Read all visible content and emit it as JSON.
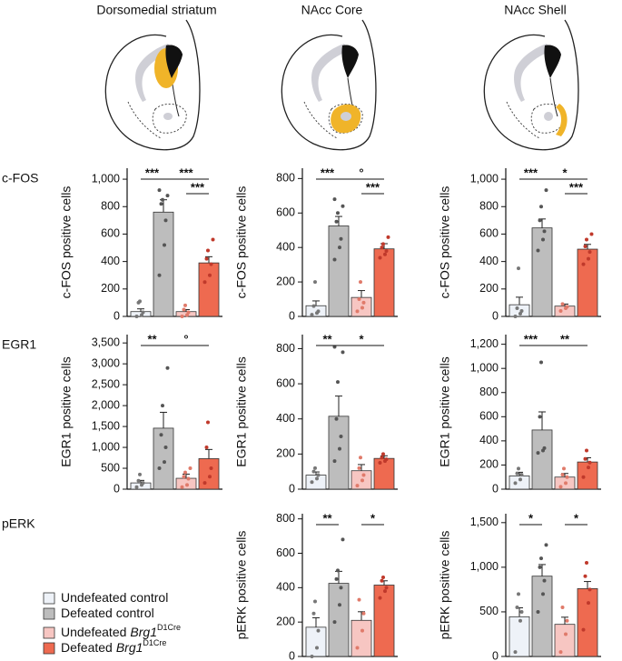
{
  "column_titles": [
    "Dorsomedial striatum",
    "NAcc Core",
    "NAcc Shell"
  ],
  "row_labels": [
    "c-FOS",
    "EGR1",
    "pERK"
  ],
  "legend": [
    {
      "name": "Undefeated control",
      "color": "#eef2f8"
    },
    {
      "name": "Defeated control",
      "color": "#bdbdbd"
    },
    {
      "name": "Undefeated",
      "gene": "Brg1",
      "sup": "D1Cre",
      "color": "#f7c6c2"
    },
    {
      "name": "Defeated",
      "gene": "Brg1",
      "sup": "D1Cre",
      "color": "#ee6a50"
    }
  ],
  "chart_data": [
    {
      "type": "bar",
      "y_label": "c-FOS positive cells",
      "colors": [
        "#eef2f8",
        "#bdbdbd",
        "#f7c6c2",
        "#ee6a50"
      ],
      "point_colors": [
        "#777777",
        "#555555",
        "#e07a6a",
        "#c0392b"
      ],
      "values": [
        35,
        760,
        35,
        390
      ],
      "errors": [
        20,
        90,
        15,
        45
      ],
      "points": [
        [
          0,
          10,
          30,
          100,
          110
        ],
        [
          300,
          520,
          700,
          820,
          850,
          880,
          920
        ],
        [
          0,
          10,
          30,
          50,
          80
        ],
        [
          250,
          300,
          380,
          420,
          480,
          560
        ]
      ],
      "ylim": [
        0,
        1080
      ],
      "yticks": [
        0,
        200,
        400,
        600,
        800,
        {
          "value": 1000,
          "label": "1,000"
        }
      ],
      "annotations": [
        {
          "from": 0,
          "to": 1,
          "label": "***"
        },
        {
          "from": 1,
          "to": 3,
          "label": "***"
        },
        {
          "from": 2,
          "to": 3,
          "label": "***"
        }
      ]
    },
    {
      "type": "bar",
      "y_label": "c-FOS positive cells",
      "colors": [
        "#eef2f8",
        "#bdbdbd",
        "#f7c6c2",
        "#ee6a50"
      ],
      "point_colors": [
        "#777777",
        "#555555",
        "#e07a6a",
        "#c0392b"
      ],
      "values": [
        62,
        525,
        110,
        392
      ],
      "errors": [
        28,
        55,
        40,
        30
      ],
      "points": [
        [
          10,
          20,
          30,
          60,
          200
        ],
        [
          330,
          400,
          450,
          550,
          600,
          640,
          680
        ],
        [
          30,
          50,
          80,
          100,
          200
        ],
        [
          340,
          360,
          380,
          400,
          420,
          460
        ]
      ],
      "ylim": [
        0,
        860
      ],
      "yticks": [
        0,
        200,
        400,
        600,
        800
      ],
      "annotations": [
        {
          "from": 0,
          "to": 1,
          "label": "***"
        },
        {
          "from": 1,
          "to": 3,
          "label": "°"
        },
        {
          "from": 2,
          "to": 3,
          "label": "***"
        }
      ]
    },
    {
      "type": "bar",
      "y_label": "c-FOS positive cells",
      "colors": [
        "#eef2f8",
        "#bdbdbd",
        "#f7c6c2",
        "#ee6a50"
      ],
      "point_colors": [
        "#777777",
        "#555555",
        "#e07a6a",
        "#c0392b"
      ],
      "values": [
        85,
        645,
        75,
        490
      ],
      "errors": [
        55,
        65,
        15,
        35
      ],
      "points": [
        [
          0,
          20,
          40,
          60,
          350
        ],
        [
          480,
          560,
          620,
          700,
          800,
          920
        ],
        [
          40,
          60,
          70,
          90
        ],
        [
          380,
          420,
          470,
          510,
          560,
          600
        ]
      ],
      "ylim": [
        0,
        1080
      ],
      "yticks": [
        0,
        200,
        400,
        600,
        800,
        {
          "value": 1000,
          "label": "1,000"
        }
      ],
      "annotations": [
        {
          "from": 0,
          "to": 1,
          "label": "***"
        },
        {
          "from": 1,
          "to": 3,
          "label": "*"
        },
        {
          "from": 2,
          "to": 3,
          "label": "***"
        }
      ]
    },
    {
      "type": "bar",
      "y_label": "EGR1 positive cells",
      "colors": [
        "#eef2f8",
        "#bdbdbd",
        "#f7c6c2",
        "#ee6a50"
      ],
      "point_colors": [
        "#777777",
        "#555555",
        "#e07a6a",
        "#c0392b"
      ],
      "values": [
        150,
        1460,
        260,
        730
      ],
      "errors": [
        60,
        380,
        100,
        220
      ],
      "points": [
        [
          50,
          100,
          150,
          200,
          350
        ],
        [
          500,
          650,
          1000,
          1300,
          2000,
          2900
        ],
        [
          50,
          100,
          250,
          300,
          400,
          500
        ],
        [
          150,
          300,
          500,
          1000,
          1600
        ]
      ],
      "ylim": [
        0,
        3700
      ],
      "yticks": [
        0,
        500,
        {
          "value": 1000,
          "label": "1,000"
        },
        {
          "value": 1500,
          "label": "1,500"
        },
        {
          "value": 2000,
          "label": "2,000"
        },
        {
          "value": 2500,
          "label": "2,500"
        },
        {
          "value": 3000,
          "label": "3,000"
        },
        {
          "value": 3500,
          "label": "3,500"
        }
      ],
      "annotations": [
        {
          "from": 0,
          "to": 1,
          "label": "**"
        },
        {
          "from": 1,
          "to": 3,
          "label": "°"
        }
      ]
    },
    {
      "type": "bar",
      "y_label": "EGR1 positive cells",
      "colors": [
        "#eef2f8",
        "#bdbdbd",
        "#f7c6c2",
        "#ee6a50"
      ],
      "point_colors": [
        "#777777",
        "#555555",
        "#e07a6a",
        "#c0392b"
      ],
      "values": [
        80,
        415,
        105,
        175
      ],
      "errors": [
        18,
        115,
        35,
        15
      ],
      "points": [
        [
          40,
          60,
          80,
          100,
          120
        ],
        [
          160,
          230,
          300,
          400,
          610,
          780,
          810
        ],
        [
          20,
          50,
          80,
          120,
          180
        ],
        [
          150,
          160,
          170,
          180,
          200
        ]
      ],
      "ylim": [
        0,
        880
      ],
      "yticks": [
        0,
        200,
        400,
        600,
        800
      ],
      "annotations": [
        {
          "from": 0,
          "to": 1,
          "label": "**"
        },
        {
          "from": 1,
          "to": 3,
          "label": "*"
        }
      ]
    },
    {
      "type": "bar",
      "y_label": "EGR1 positive cells",
      "colors": [
        "#eef2f8",
        "#bdbdbd",
        "#f7c6c2",
        "#ee6a50"
      ],
      "point_colors": [
        "#777777",
        "#555555",
        "#e07a6a",
        "#c0392b"
      ],
      "values": [
        110,
        490,
        100,
        225
      ],
      "errors": [
        30,
        150,
        30,
        35
      ],
      "points": [
        [
          50,
          80,
          120,
          130,
          170
        ],
        [
          300,
          320,
          340,
          600,
          1050
        ],
        [
          20,
          50,
          100,
          120,
          170
        ],
        [
          100,
          180,
          220,
          250,
          320
        ]
      ],
      "ylim": [
        0,
        1280
      ],
      "yticks": [
        0,
        200,
        400,
        600,
        800,
        {
          "value": 1000,
          "label": "1,000"
        },
        {
          "value": 1200,
          "label": "1,200"
        }
      ],
      "annotations": [
        {
          "from": 0,
          "to": 1,
          "label": "***"
        },
        {
          "from": 1,
          "to": 3,
          "label": "**"
        }
      ]
    },
    {
      "type": "bar",
      "y_label": "pERK positive cells",
      "colors": [
        "#eef2f8",
        "#bdbdbd",
        "#f7c6c2",
        "#ee6a50"
      ],
      "point_colors": [
        "#777777",
        "#555555",
        "#e07a6a",
        "#c0392b"
      ],
      "values": [
        170,
        425,
        210,
        415
      ],
      "errors": [
        55,
        70,
        50,
        25
      ],
      "points": [
        [
          0,
          50,
          150,
          250,
          320
        ],
        [
          200,
          300,
          400,
          450,
          500,
          680
        ],
        [
          50,
          150,
          250,
          330
        ],
        [
          340,
          380,
          400,
          440,
          460
        ]
      ],
      "ylim": [
        0,
        830
      ],
      "yticks": [
        0,
        200,
        400,
        600,
        800
      ],
      "annotations": [
        {
          "from": 0,
          "to": 1,
          "label": "**"
        },
        {
          "from": 2,
          "to": 3,
          "label": "*"
        }
      ]
    },
    {
      "type": "bar",
      "y_label": "pERK positive cells",
      "colors": [
        "#eef2f8",
        "#bdbdbd",
        "#f7c6c2",
        "#ee6a50"
      ],
      "point_colors": [
        "#777777",
        "#555555",
        "#e07a6a",
        "#c0392b"
      ],
      "values": [
        445,
        900,
        360,
        760
      ],
      "errors": [
        100,
        130,
        80,
        80
      ],
      "points": [
        [
          50,
          400,
          500,
          550,
          700
        ],
        [
          500,
          700,
          850,
          1000,
          1100,
          1250
        ],
        [
          50,
          250,
          400,
          550
        ],
        [
          300,
          600,
          750,
          900,
          1050
        ]
      ],
      "ylim": [
        0,
        1600
      ],
      "yticks": [
        0,
        500,
        {
          "value": 1000,
          "label": "1,000"
        },
        {
          "value": 1500,
          "label": "1,500"
        }
      ],
      "annotations": [
        {
          "from": 0,
          "to": 1,
          "label": "*"
        },
        {
          "from": 2,
          "to": 3,
          "label": "*"
        }
      ]
    }
  ]
}
